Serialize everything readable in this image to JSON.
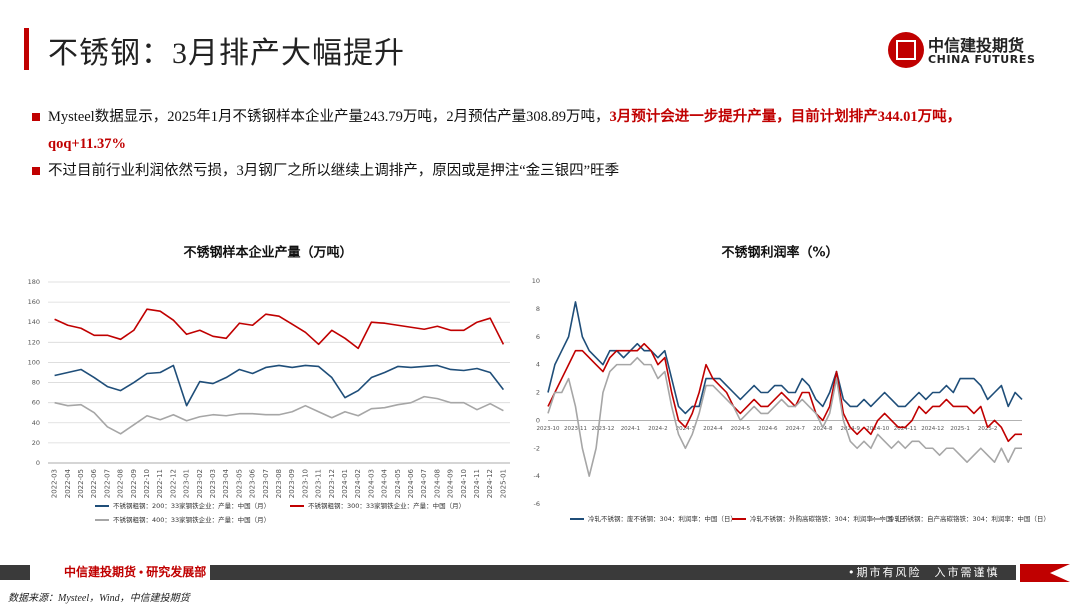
{
  "header": {
    "title": "不锈钢：3月排产大幅提升",
    "logo_cn": "中信建投期货",
    "logo_en": "CHINA FUTURES"
  },
  "bullets": [
    [
      "Mysteel数据显示，2025年1月不锈钢样本企业产量243.79万吨，2月预估产量308.89万吨，",
      "3月预计会进一步提升产量，目前计划排产344.01万吨，qoq+11.37%"
    ],
    [
      "不过目前行业利润依然亏损，3月钢厂之所以继续上调排产，原因或是押注“金三银四”旺季"
    ]
  ],
  "footer": {
    "department": "中信建投期货 • 研究发展部",
    "slogan": "•期市有风险　入市需谨慎",
    "source": "数据来源：Mysteel，Wind，中信建投期货"
  },
  "chart_data": [
    {
      "type": "line",
      "title": "不锈钢样本企业产量（万吨）",
      "grid": true,
      "legend": "bottom",
      "categories": [
        "2022-03",
        "2022-04",
        "2022-05",
        "2022-06",
        "2022-07",
        "2022-08",
        "2022-09",
        "2022-10",
        "2022-11",
        "2022-12",
        "2023-01",
        "2023-02",
        "2023-03",
        "2023-04",
        "2023-05",
        "2023-06",
        "2023-07",
        "2023-08",
        "2023-09",
        "2023-10",
        "2023-11",
        "2023-12",
        "2024-01",
        "2024-02",
        "2024-03",
        "2024-04",
        "2024-05",
        "2024-06",
        "2024-07",
        "2024-08",
        "2024-09",
        "2024-10",
        "2024-11",
        "2024-12",
        "2025-01"
      ],
      "ylim": [
        0,
        180
      ],
      "yticks": [
        0,
        20,
        40,
        60,
        80,
        100,
        120,
        140,
        160,
        180
      ],
      "series": [
        {
          "name": "不锈钢粗钢：200：33家钢铁企业：产量：中国（月）",
          "color": "#1f4e79",
          "values": [
            87,
            90,
            93,
            85,
            76,
            72,
            80,
            89,
            90,
            97,
            57,
            81,
            79,
            85,
            93,
            89,
            95,
            97,
            95,
            97,
            96,
            85,
            65,
            72,
            85,
            90,
            96,
            95,
            96,
            97,
            93,
            92,
            94,
            90,
            73
          ]
        },
        {
          "name": "不锈钢粗钢：300：33家钢铁企业：产量：中国（月）",
          "color": "#c00000",
          "values": [
            143,
            137,
            134,
            127,
            127,
            123,
            132,
            153,
            151,
            142,
            128,
            132,
            126,
            124,
            139,
            137,
            148,
            146,
            138,
            130,
            118,
            132,
            124,
            114,
            140,
            139,
            137,
            135,
            133,
            136,
            132,
            132,
            140,
            144,
            118
          ]
        },
        {
          "name": "不锈钢粗钢：400：33家钢铁企业：产量：中国（月）",
          "color": "#a6a6a6",
          "values": [
            60,
            57,
            58,
            50,
            36,
            29,
            38,
            47,
            43,
            48,
            42,
            46,
            48,
            47,
            49,
            49,
            48,
            48,
            51,
            57,
            51,
            45,
            51,
            47,
            54,
            55,
            58,
            60,
            66,
            64,
            60,
            60,
            53,
            59,
            52
          ]
        }
      ]
    },
    {
      "type": "line",
      "title": "不锈钢利润率（%）",
      "grid": false,
      "legend": "bottom",
      "categories": [
        "2023-10",
        null,
        null,
        null,
        "2023-11",
        null,
        null,
        null,
        "2023-12",
        null,
        null,
        null,
        "2024-1",
        null,
        null,
        null,
        "2024-2",
        null,
        null,
        null,
        "2024-3",
        null,
        null,
        null,
        "2024-4",
        null,
        null,
        null,
        "2024-5",
        null,
        null,
        null,
        "2024-6",
        null,
        null,
        null,
        "2024-7",
        null,
        null,
        null,
        "2024-8",
        null,
        null,
        null,
        "2024-9",
        null,
        null,
        null,
        "2024-10",
        null,
        null,
        null,
        "2024-11",
        null,
        null,
        null,
        "2024-12",
        null,
        null,
        null,
        "2025-1",
        null,
        null,
        null,
        "2025-2",
        null,
        null,
        null,
        null,
        null
      ],
      "ylim": [
        -6,
        10
      ],
      "yticks": [
        -6,
        -4,
        -2,
        0,
        2,
        4,
        6,
        8,
        10
      ],
      "series": [
        {
          "name": "冷轧不锈钢：废不锈钢：304：利润率：中国（日）",
          "color": "#1f4e79",
          "values": [
            2,
            4,
            5,
            6,
            8.5,
            6,
            5,
            4.5,
            4,
            5,
            5,
            4.5,
            5,
            5.5,
            5,
            5,
            4.5,
            5,
            3,
            1,
            0.5,
            1,
            1,
            3,
            3,
            3,
            2.5,
            2,
            1.5,
            2,
            2.5,
            2,
            2,
            2.5,
            2.5,
            2,
            2,
            3,
            2.5,
            1.5,
            1,
            2,
            3.5,
            1.5,
            1,
            1,
            1.5,
            1,
            1.5,
            2,
            1.5,
            1,
            1,
            1.5,
            2,
            1.5,
            2,
            2,
            2.5,
            2,
            3,
            3,
            3,
            2.5,
            1.5,
            2,
            2.5,
            1,
            2,
            1.5
          ]
        },
        {
          "name": "冷轧不锈钢：外购高碳铬铁：304：利润率：中国（日）",
          "color": "#c00000",
          "values": [
            1,
            2,
            3,
            4,
            5,
            5,
            4.5,
            4,
            3.5,
            4.5,
            5,
            5,
            5,
            5,
            5.5,
            5,
            4,
            4.5,
            2,
            0,
            -0.5,
            0.5,
            2,
            4,
            3,
            2.5,
            2,
            1,
            0.5,
            1,
            1.5,
            1,
            1,
            1.5,
            2,
            1.5,
            1,
            2,
            2,
            0.5,
            0,
            1,
            3.5,
            0.5,
            -0.5,
            -1,
            -0.5,
            -1,
            0,
            0.5,
            0,
            -0.5,
            -0.5,
            0,
            1,
            0.5,
            1,
            1,
            1.5,
            1,
            1,
            1,
            0.5,
            1,
            -0.5,
            0,
            -0.5,
            -1.5,
            -1,
            -1
          ]
        },
        {
          "name": "冷轧不锈钢：自产高碳铬铁：304：利润率：中国（日）",
          "color": "#a6a6a6",
          "values": [
            0.5,
            2,
            2,
            3,
            1,
            -2,
            -4,
            -2,
            2,
            3.5,
            4,
            4,
            4,
            4.5,
            4,
            4,
            3,
            3.5,
            1,
            -1,
            -2,
            -1,
            0.5,
            2.5,
            2.5,
            2,
            1.5,
            1,
            0,
            0.5,
            1,
            0.5,
            0.5,
            1,
            1.5,
            1,
            1,
            1.5,
            1,
            0.5,
            -0.5,
            0.5,
            3,
            0,
            -1.5,
            -2,
            -1.5,
            -2,
            -1,
            -1.5,
            -2,
            -1.5,
            -2,
            -1.5,
            -1.5,
            -2,
            -2,
            -2.5,
            -2,
            -2,
            -2.5,
            -3,
            -2.5,
            -2,
            -2.5,
            -3,
            -2,
            -3,
            -2,
            -2
          ]
        }
      ]
    }
  ]
}
